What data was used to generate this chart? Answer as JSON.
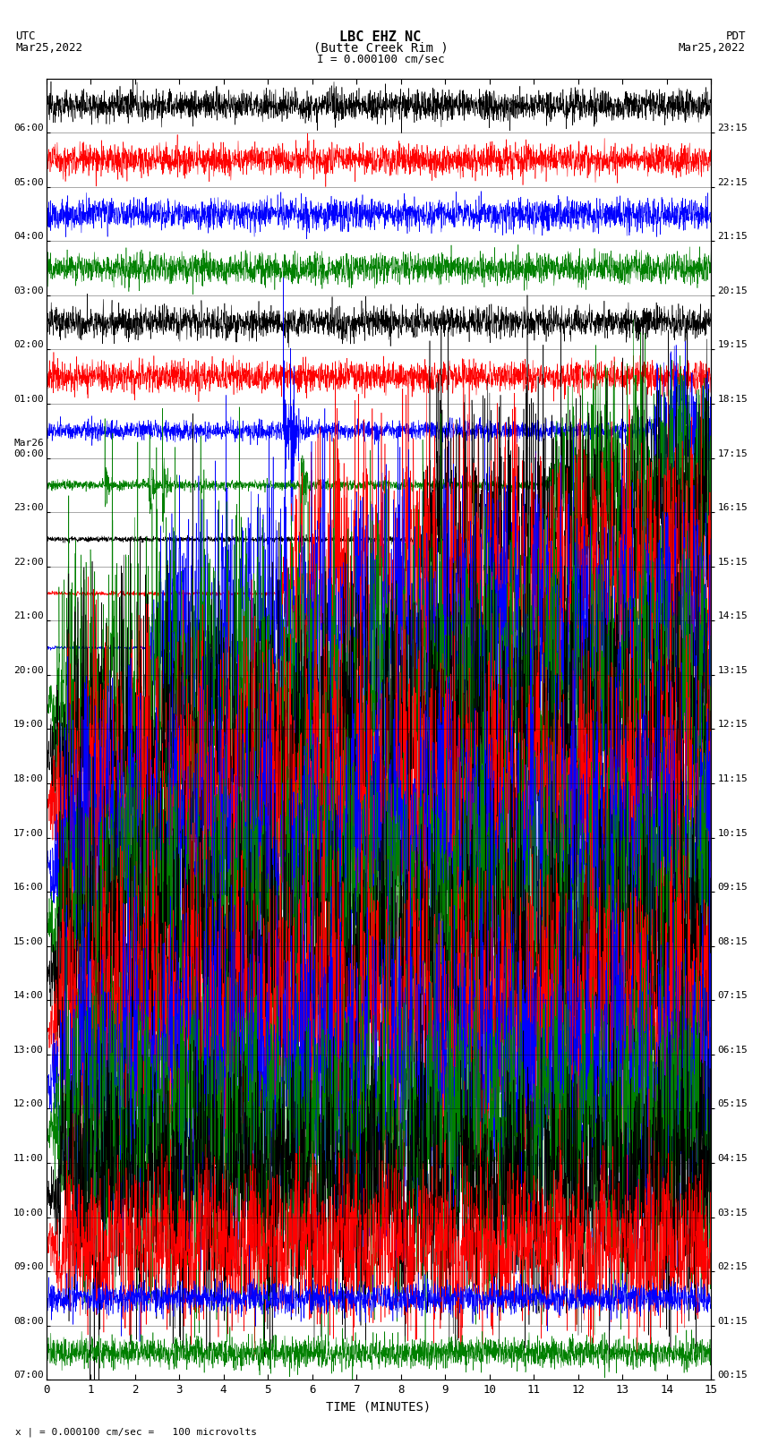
{
  "title_line1": "LBC EHZ NC",
  "title_line2": "(Butte Creek Rim )",
  "scale_label": "I = 0.000100 cm/sec",
  "footer_label": "x | = 0.000100 cm/sec =   100 microvolts",
  "left_header_line1": "UTC",
  "left_header_line2": "Mar25,2022",
  "right_header_line1": "PDT",
  "right_header_line2": "Mar25,2022",
  "xlabel": "TIME (MINUTES)",
  "left_times": [
    "07:00",
    "08:00",
    "09:00",
    "10:00",
    "11:00",
    "12:00",
    "13:00",
    "14:00",
    "15:00",
    "16:00",
    "17:00",
    "18:00",
    "19:00",
    "20:00",
    "21:00",
    "22:00",
    "23:00",
    "Mar26\n00:00",
    "01:00",
    "02:00",
    "03:00",
    "04:00",
    "05:00",
    "06:00"
  ],
  "right_times": [
    "00:15",
    "01:15",
    "02:15",
    "03:15",
    "04:15",
    "05:15",
    "06:15",
    "07:15",
    "08:15",
    "09:15",
    "10:15",
    "11:15",
    "12:15",
    "13:15",
    "14:15",
    "15:15",
    "16:15",
    "17:15",
    "18:15",
    "19:15",
    "20:15",
    "21:15",
    "22:15",
    "23:15"
  ],
  "num_traces": 24,
  "minutes_per_trace": 15,
  "bg_color": "white",
  "trace_colors_cycle": [
    "black",
    "red",
    "blue",
    "green"
  ],
  "xlim": [
    0,
    15
  ],
  "xticks": [
    0,
    1,
    2,
    3,
    4,
    5,
    6,
    7,
    8,
    9,
    10,
    11,
    12,
    13,
    14,
    15
  ],
  "figsize": [
    8.5,
    16.13
  ],
  "dpi": 100
}
